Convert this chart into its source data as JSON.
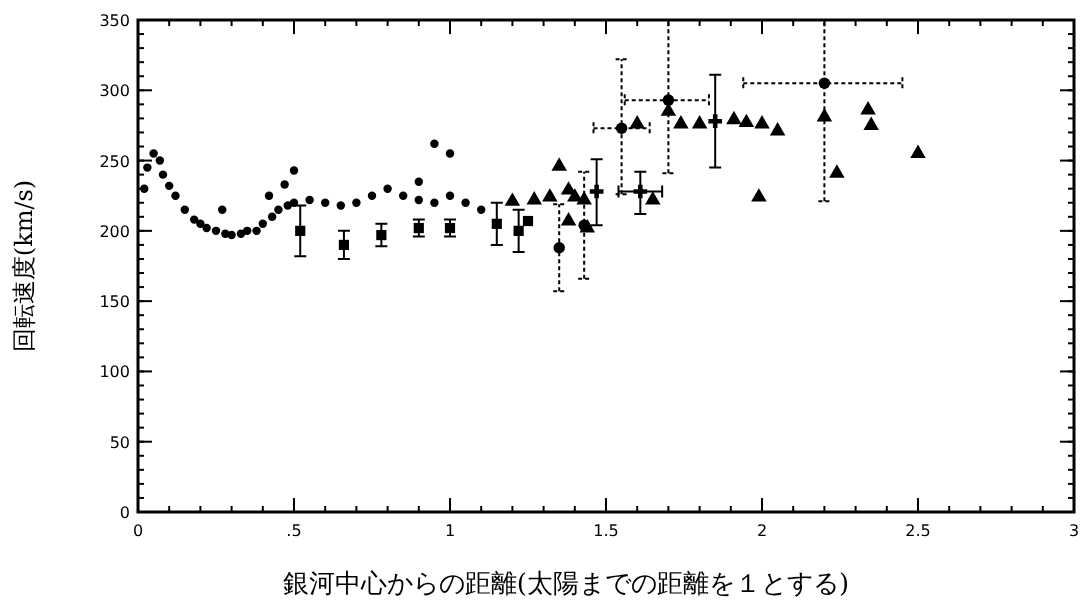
{
  "chart_data": {
    "type": "scatter",
    "xlabel": "銀河中心からの距離(太陽までの距離を１とする)",
    "ylabel": "回転速度(km/s)",
    "xlim": [
      0,
      3
    ],
    "ylim": [
      0,
      350
    ],
    "xticks": [
      0,
      {
        "value": 0.5,
        "label": ".5"
      },
      1,
      1.5,
      2,
      2.5,
      3
    ],
    "yticks": [
      0,
      50,
      100,
      150,
      200,
      250,
      300,
      350
    ],
    "grid": false,
    "series": [
      {
        "color": "#000000",
        "marker": "circle",
        "x": [
          0.02,
          0.03,
          0.05,
          0.07,
          0.08,
          0.1,
          0.12,
          0.15,
          0.18,
          0.2,
          0.22,
          0.25,
          0.27,
          0.28,
          0.3,
          0.33,
          0.35,
          0.38,
          0.4,
          0.42,
          0.43,
          0.45,
          0.47,
          0.48,
          0.5,
          0.5,
          0.55,
          0.6,
          0.65,
          0.7,
          0.75,
          0.8,
          0.85,
          0.9,
          0.9,
          0.95,
          0.95,
          1.0,
          1.0,
          1.05,
          1.1
        ],
        "values": [
          230,
          245,
          255,
          250,
          240,
          232,
          225,
          215,
          208,
          205,
          202,
          200,
          215,
          198,
          197,
          198,
          200,
          200,
          205,
          225,
          210,
          215,
          233,
          218,
          220,
          243,
          222,
          220,
          218,
          220,
          225,
          230,
          225,
          222,
          235,
          220,
          262,
          225,
          255,
          220,
          215
        ]
      },
      {
        "color": "#000000",
        "marker": "square",
        "x": [
          0.52,
          0.66,
          0.78,
          0.9,
          1.0,
          1.15,
          1.22,
          1.25
        ],
        "values": [
          200,
          190,
          197,
          202,
          202,
          205,
          200,
          207
        ],
        "errors": [
          18,
          10,
          8,
          6,
          6,
          15,
          15,
          null
        ]
      },
      {
        "color": "#000000",
        "marker": "circle",
        "x": [
          1.35,
          1.43,
          1.55,
          1.7,
          2.2
        ],
        "values": [
          188,
          204,
          273,
          293,
          305
        ],
        "errors": [
          31,
          38,
          [
            226,
            322
          ],
          [
            241,
            350
          ],
          [
            221,
            350
          ]
        ],
        "xerrors": [
          null,
          null,
          [
            1.46,
            1.64
          ],
          [
            1.56,
            1.83
          ],
          [
            1.94,
            2.45
          ]
        ]
      },
      {
        "color": "#000000",
        "marker": "cross",
        "x": [
          1.47,
          1.61,
          1.85
        ],
        "values": [
          228,
          228,
          278
        ],
        "errors": [
          [
            204,
            251
          ],
          [
            212,
            242
          ],
          [
            245,
            311
          ]
        ],
        "xerrors": [
          null,
          [
            1.54,
            1.68
          ],
          null
        ]
      },
      {
        "color": "#000000",
        "marker": "triangle",
        "x": [
          1.2,
          1.27,
          1.32,
          1.38,
          1.4,
          1.43,
          1.38,
          1.44,
          1.65
        ],
        "values": [
          221,
          222,
          224,
          229,
          224,
          222,
          207,
          202,
          222
        ]
      },
      {
        "color": "#000000",
        "marker": "triangle",
        "x": [
          1.35,
          1.6,
          1.7,
          1.74,
          1.8,
          1.91,
          1.95,
          2.0,
          2.05,
          1.99,
          2.2,
          2.24,
          2.34,
          2.35,
          2.5
        ],
        "values": [
          246,
          276,
          285,
          276,
          276,
          279,
          277,
          276,
          271,
          224,
          281,
          241,
          286,
          275,
          255
        ]
      }
    ]
  }
}
